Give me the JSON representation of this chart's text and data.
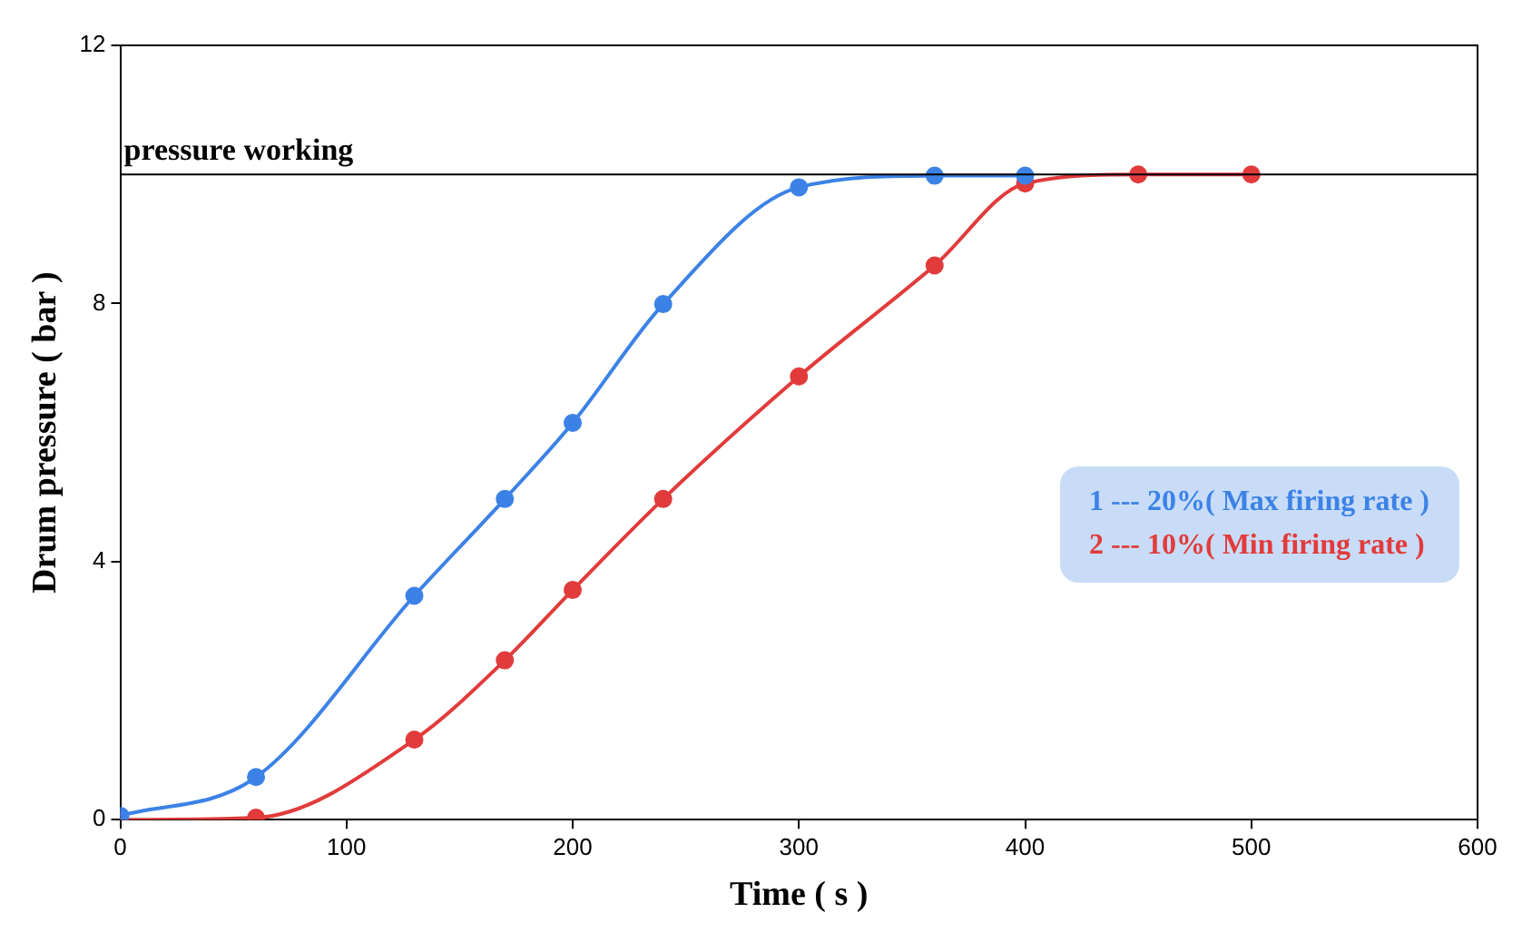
{
  "chart_data": {
    "type": "line",
    "xlabel": "Time ( s )",
    "ylabel": "Drum pressure ( bar )",
    "xlim": [
      0,
      600
    ],
    "xticks": [
      0,
      100,
      200,
      300,
      400,
      500,
      600
    ],
    "ylim": [
      0,
      12
    ],
    "yticks": [
      0,
      4,
      8,
      12
    ],
    "grid": false,
    "legend": "right",
    "marker": "circle",
    "line_style": "solid",
    "ref_lines": [
      {
        "axis": "y",
        "value": 10,
        "label": "pressure working",
        "color": "#000000"
      }
    ],
    "series": [
      {
        "name": "1 --- 20%( Max firing rate )",
        "color": "#3c82e6",
        "x": [
          0,
          60,
          130,
          170,
          200,
          240,
          300,
          360,
          400
        ],
        "values": [
          0.06,
          0.66,
          3.47,
          4.97,
          6.15,
          7.99,
          9.8,
          9.98,
          9.98
        ]
      },
      {
        "name": "2 --- 10%( Min firing rate )",
        "color": "#e23b3b",
        "x": [
          0,
          60,
          130,
          170,
          200,
          240,
          300,
          360,
          400,
          450,
          500
        ],
        "values": [
          0,
          0.03,
          1.24,
          2.47,
          3.56,
          4.97,
          6.87,
          8.59,
          9.86,
          10,
          10
        ]
      }
    ]
  }
}
